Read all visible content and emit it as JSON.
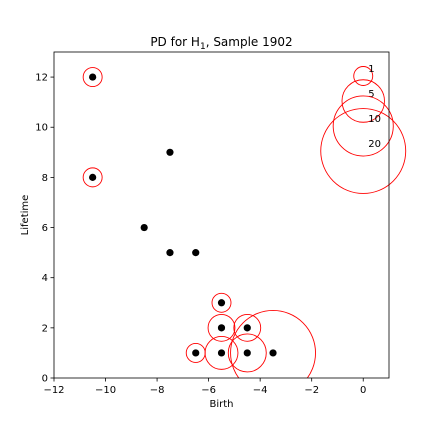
{
  "chart_data": {
    "type": "scatter",
    "title": "PD for H",
    "title_subscript": "1",
    "title_suffix": ", Sample 1902",
    "xlabel": "Birth",
    "ylabel": "Lifetime",
    "xlim": [
      -12,
      1
    ],
    "ylim": [
      0,
      13
    ],
    "xticks": [
      -12,
      -10,
      -8,
      -6,
      -4,
      -2,
      0
    ],
    "yticks": [
      0,
      2,
      4,
      6,
      8,
      10,
      12
    ],
    "grid": false,
    "point_color": "#000000",
    "circle_color": "#ff0000",
    "points": [
      {
        "birth": -10.5,
        "lifetime": 12,
        "multiplicity": 1
      },
      {
        "birth": -10.5,
        "lifetime": 8,
        "multiplicity": 1
      },
      {
        "birth": -7.5,
        "lifetime": 9,
        "multiplicity": 0
      },
      {
        "birth": -8.5,
        "lifetime": 6,
        "multiplicity": 0
      },
      {
        "birth": -7.5,
        "lifetime": 5,
        "multiplicity": 0
      },
      {
        "birth": -6.5,
        "lifetime": 5,
        "multiplicity": 0
      },
      {
        "birth": -5.5,
        "lifetime": 3,
        "multiplicity": 1
      },
      {
        "birth": -5.5,
        "lifetime": 2,
        "multiplicity": 2
      },
      {
        "birth": -4.5,
        "lifetime": 2,
        "multiplicity": 2
      },
      {
        "birth": -6.5,
        "lifetime": 1,
        "multiplicity": 1
      },
      {
        "birth": -5.5,
        "lifetime": 1,
        "multiplicity": 3
      },
      {
        "birth": -4.5,
        "lifetime": 1,
        "multiplicity": 4
      },
      {
        "birth": -3.5,
        "lifetime": 1,
        "multiplicity": 20
      }
    ],
    "legend": {
      "placement": "top-right",
      "entries": [
        {
          "label": "1",
          "value": 1
        },
        {
          "label": "5",
          "value": 5
        },
        {
          "label": "10",
          "value": 10
        },
        {
          "label": "20",
          "value": 20
        }
      ]
    }
  }
}
